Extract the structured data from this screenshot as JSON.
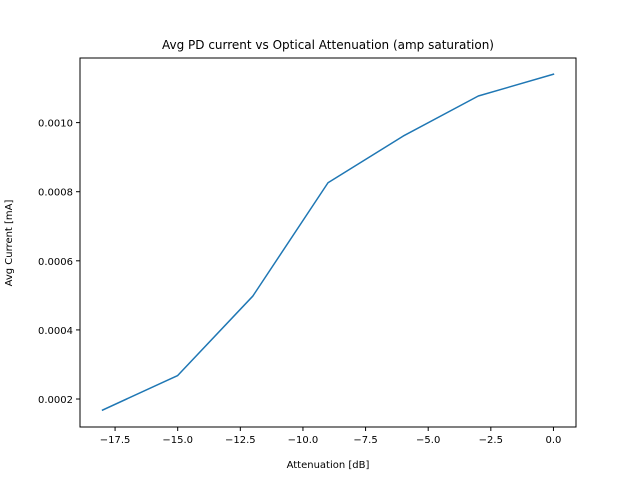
{
  "chart_data": {
    "type": "line",
    "title": "Avg PD current vs Optical Attenuation (amp saturation)",
    "xlabel": "Attenuation [dB]",
    "ylabel": "Avg Current [mA]",
    "xlim": [
      -18.9,
      0.9
    ],
    "ylim": [
      0.000119,
      0.001187
    ],
    "xticks": [
      -17.5,
      -15.0,
      -12.5,
      -10.0,
      -7.5,
      -5.0,
      -2.5,
      0.0
    ],
    "xtick_labels": [
      "−17.5",
      "−15.0",
      "−12.5",
      "−10.0",
      "−7.5",
      "−5.0",
      "−2.5",
      "0.0"
    ],
    "yticks": [
      0.0002,
      0.0004,
      0.0006,
      0.0008,
      0.001
    ],
    "ytick_labels": [
      "0.0002",
      "0.0004",
      "0.0006",
      "0.0008",
      "0.0010"
    ],
    "grid": false,
    "series": [
      {
        "x": [
          -18,
          -15,
          -12,
          -9,
          -6,
          -3,
          0
        ],
        "y": [
          0.000168,
          0.000268,
          0.000498,
          0.000826,
          0.000961,
          0.001077,
          0.00114
        ],
        "color": "#1f77b4"
      }
    ]
  }
}
